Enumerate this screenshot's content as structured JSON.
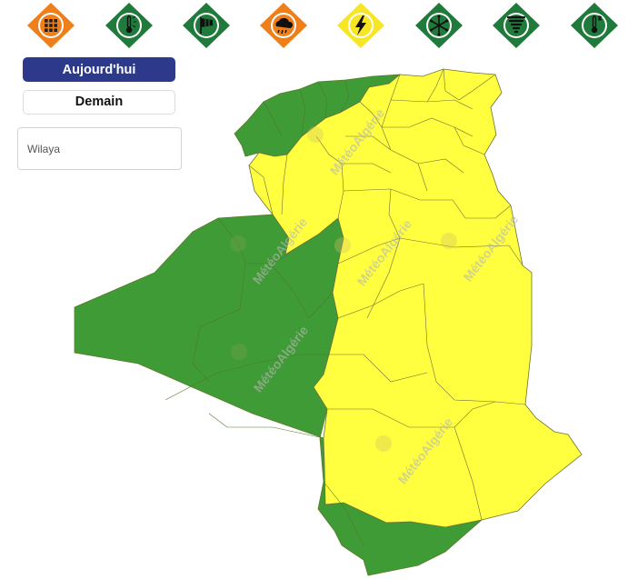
{
  "colors": {
    "orange": "#ef7f1a",
    "green": "#1f7a3b",
    "yellow": "#f7e626",
    "map_green": "#3f9b35",
    "map_yellow": "#ffff40",
    "border": "#6f6f3a",
    "primary": "#2d3a8c"
  },
  "icons": [
    {
      "name": "all-vigilance-icon",
      "color": "orange"
    },
    {
      "name": "thermometer-heat-icon",
      "color": "green"
    },
    {
      "name": "windsock-icon",
      "color": "green"
    },
    {
      "name": "rain-cloud-icon",
      "color": "orange"
    },
    {
      "name": "lightning-icon",
      "color": "yellow"
    },
    {
      "name": "snowflake-icon",
      "color": "green"
    },
    {
      "name": "tornado-icon",
      "color": "green"
    },
    {
      "name": "thermometer-cold-icon",
      "color": "green"
    }
  ],
  "controls": {
    "today_label": "Aujourd'hui",
    "tomorrow_label": "Demain",
    "wilaya_placeholder": "Wilaya"
  },
  "map": {
    "watermark": "MétéoAlgérie",
    "vigilance": {
      "green": "Vert",
      "yellow": "Jaune"
    }
  }
}
